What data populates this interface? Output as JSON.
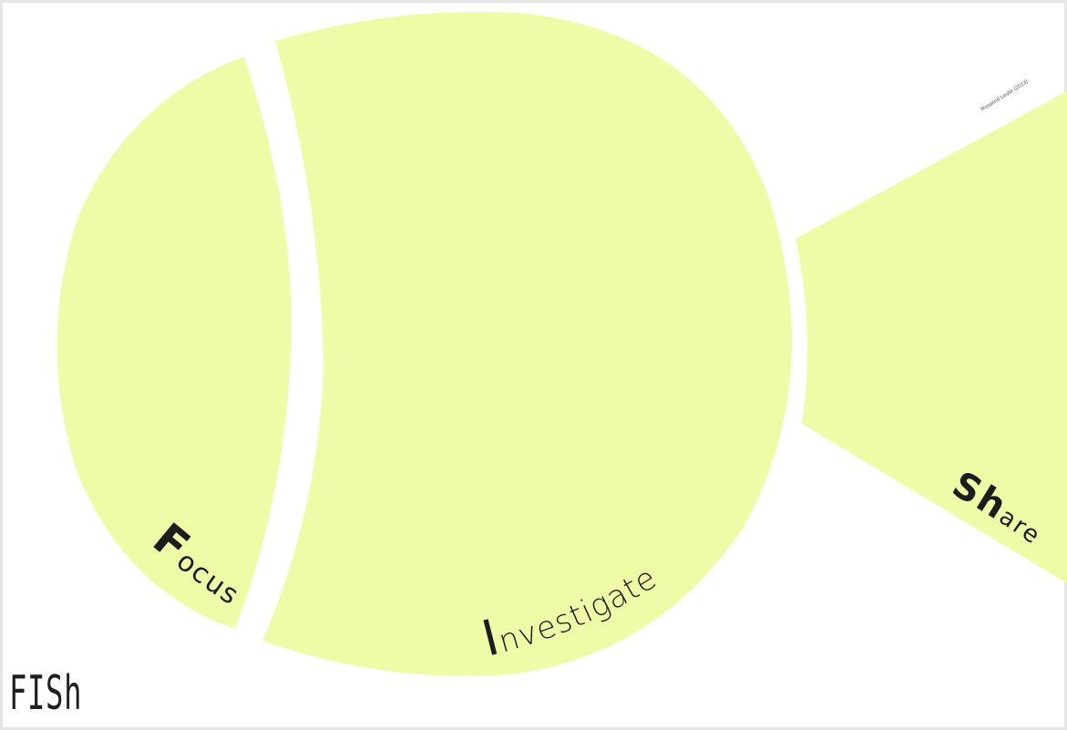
{
  "colors": {
    "fill": "#eefca8",
    "background": "#ffffff",
    "frame": "#e8e8e8",
    "text": "#1c1c1c"
  },
  "title": "FISh",
  "credit": "Rosalind Leslie (2013)",
  "sections": {
    "focus": {
      "initial": "F",
      "rest": "ocus"
    },
    "investigate": {
      "initial": "I",
      "rest": "nvestigate"
    },
    "share": {
      "initial": "Sh",
      "rest": "are"
    }
  }
}
